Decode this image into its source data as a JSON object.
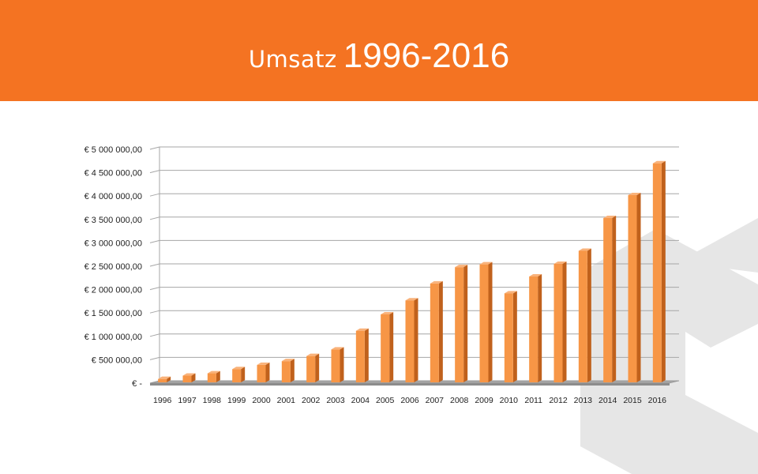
{
  "header": {
    "title_word": "Umsatz",
    "title_years": "1996-2016",
    "background_color": "#f47322"
  },
  "chart_data": {
    "type": "bar",
    "title": "Umsatz 1996-2016",
    "xlabel": "",
    "ylabel": "",
    "categories": [
      "1996",
      "1997",
      "1998",
      "1999",
      "2000",
      "2001",
      "2002",
      "2003",
      "2004",
      "2005",
      "2006",
      "2007",
      "2008",
      "2009",
      "2010",
      "2011",
      "2012",
      "2013",
      "2014",
      "2015",
      "2016"
    ],
    "values": [
      90000,
      160000,
      210000,
      300000,
      390000,
      470000,
      580000,
      720000,
      1120000,
      1470000,
      1770000,
      2130000,
      2480000,
      2540000,
      1920000,
      2280000,
      2550000,
      2830000,
      3530000,
      4020000,
      4700000
    ],
    "ylim": [
      0,
      5000000
    ],
    "y_tick_values": [
      0,
      500000,
      1000000,
      1500000,
      2000000,
      2500000,
      3000000,
      3500000,
      4000000,
      4500000,
      5000000
    ],
    "y_tick_labels": [
      "€ -",
      "€ 500 000,00",
      "€ 1 000 000,00",
      "€ 1 500 000,00",
      "€ 2 000 000,00",
      "€ 2 500 000,00",
      "€ 3 000 000,00",
      "€ 3 500 000,00",
      "€ 4 000 000,00",
      "€ 4 500 000,00",
      "€ 5 000 000,00"
    ],
    "grid": true,
    "legend": "none",
    "bar_style": "3d-column",
    "bar_color": "#f79646"
  }
}
